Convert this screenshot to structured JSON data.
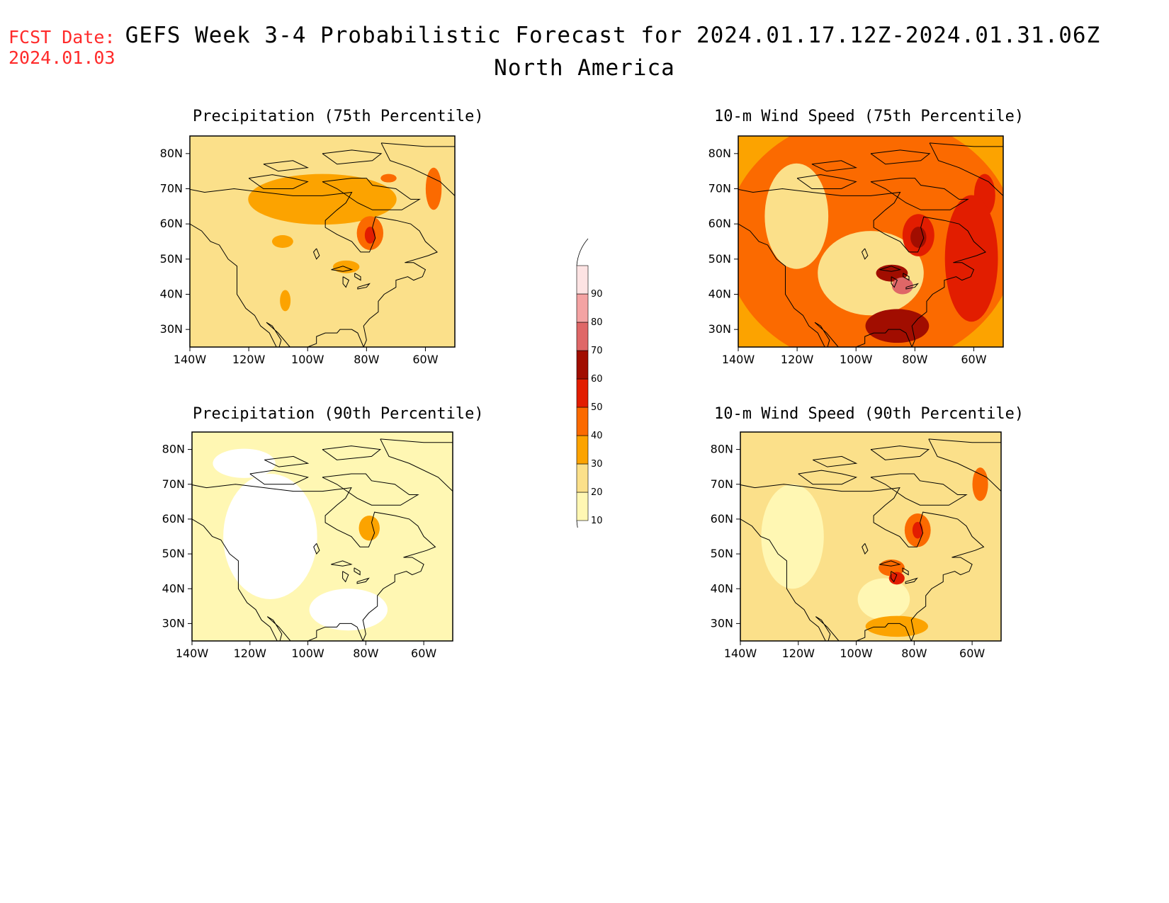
{
  "header": {
    "fcst_label": "FCST Date:",
    "fcst_date": "2024.01.03",
    "title": "GEFS Week 3-4 Probabilistic Forecast for 2024.01.17.12Z-2024.01.31.06Z",
    "subtitle": "North America"
  },
  "panels": [
    {
      "title": "Precipitation (75th Percentile)",
      "base_level": 20
    },
    {
      "title": "10-m Wind Speed (75th Percentile)",
      "base_level": 30
    },
    {
      "title": "Precipitation (90th Percentile)",
      "base_level": 10
    },
    {
      "title": "10-m Wind Speed (90th Percentile)",
      "base_level": 20
    }
  ],
  "axes": {
    "lat_labels": [
      "30N",
      "40N",
      "50N",
      "60N",
      "70N",
      "80N"
    ],
    "lat_values": [
      30,
      40,
      50,
      60,
      70,
      80
    ],
    "lon_labels": [
      "140W",
      "120W",
      "100W",
      "80W",
      "60W"
    ],
    "lon_values": [
      -140,
      -120,
      -100,
      -80,
      -60
    ],
    "lon_range": [
      -140,
      -50
    ],
    "lat_range": [
      25,
      85
    ]
  },
  "colorbar": {
    "levels": [
      "10",
      "20",
      "30",
      "40",
      "50",
      "60",
      "70",
      "80",
      "90"
    ],
    "colors": [
      "#fff7b3",
      "#fbe08a",
      "#fca300",
      "#fb6a00",
      "#e21d00",
      "#a10d00",
      "#df6767",
      "#f4a3a3",
      "#fde3e3"
    ]
  }
}
